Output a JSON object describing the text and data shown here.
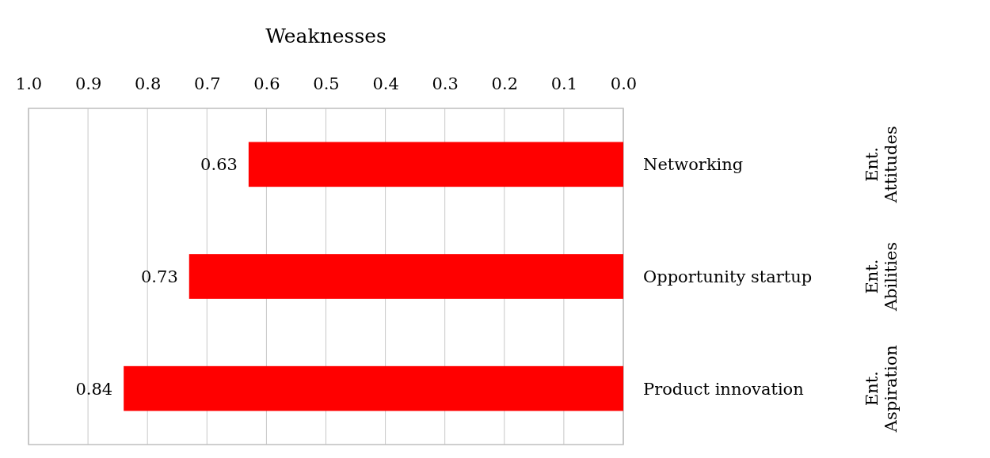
{
  "chart_data": {
    "type": "bar",
    "orientation": "horizontal",
    "title": "Weaknesses",
    "categories": [
      "Networking",
      "Opportunity startup",
      "Product innovation"
    ],
    "values": [
      0.63,
      0.73,
      0.84
    ],
    "color": "#ff0000",
    "data_labels": true,
    "xlim": [
      1,
      0
    ],
    "xticks": [
      {
        "value": 1,
        "label": "1.0"
      },
      0.9,
      0.8,
      0.7,
      0.6,
      0.5,
      0.4,
      0.3,
      0.2,
      0.1,
      {
        "value": 0,
        "label": "0.0"
      }
    ],
    "grid": "x",
    "annotations": [
      "Ent. Attitudes",
      "Ent. Abilities",
      "Ent. Aspiration"
    ]
  }
}
